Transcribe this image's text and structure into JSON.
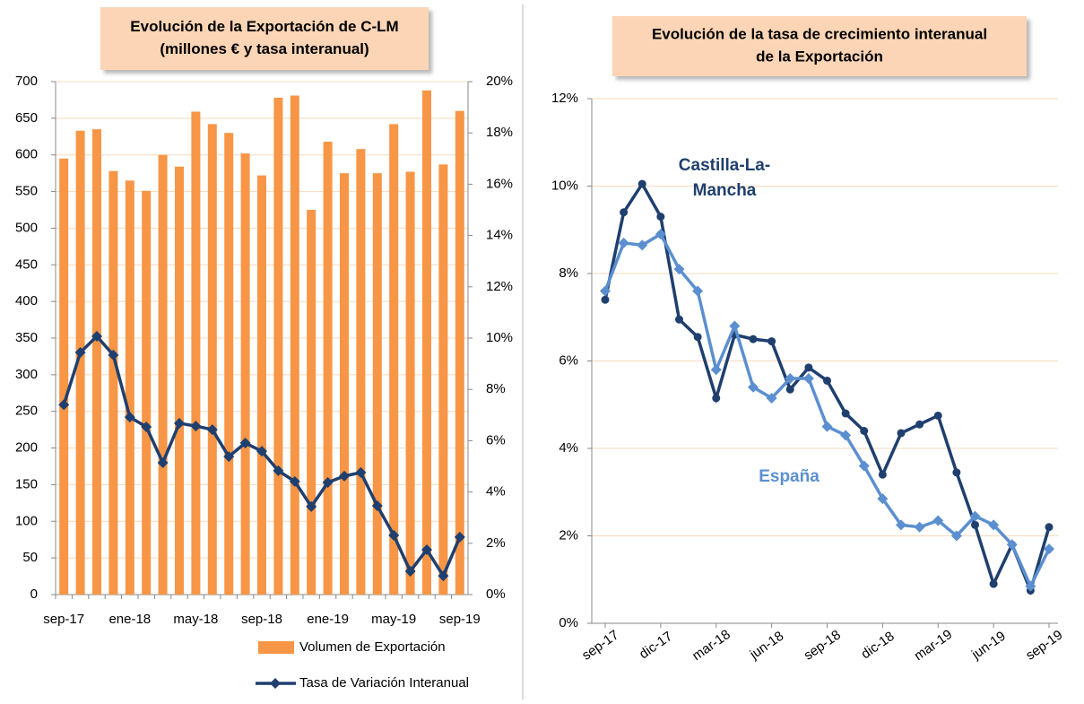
{
  "chart_data": [
    {
      "type": "combo",
      "title": [
        "Evolución de la Exportación de C-LM",
        "(millones € y tasa interanual)"
      ],
      "categories": [
        "sep-17",
        null,
        null,
        null,
        "ene-18",
        null,
        null,
        null,
        "may-18",
        null,
        null,
        null,
        "sep-18",
        null,
        null,
        null,
        "ene-19",
        null,
        null,
        null,
        "may-19",
        null,
        null,
        null,
        "sep-19"
      ],
      "series": [
        {
          "name": "Volumen de Exportación",
          "type": "bar",
          "color": "#f79646",
          "values": [
            595,
            633,
            635,
            578,
            565,
            551,
            600,
            584,
            659,
            642,
            630,
            602,
            572,
            678,
            681,
            525,
            618,
            575,
            608,
            575,
            642,
            577,
            688,
            587,
            660
          ]
        },
        {
          "name": "Tasa de Variación Interanual",
          "type": "line",
          "axis": "y2",
          "marker": "diamond",
          "color": "#1f3f6e",
          "values": [
            7.4,
            9.44,
            10.07,
            9.34,
            6.92,
            6.54,
            5.14,
            6.68,
            6.57,
            6.43,
            5.38,
            5.91,
            5.59,
            4.83,
            4.41,
            3.43,
            4.37,
            4.62,
            4.76,
            3.46,
            2.31,
            0.91,
            1.75,
            0.73,
            2.24
          ]
        }
      ],
      "ylim": [
        0,
        700
      ],
      "yticks": [
        0,
        50,
        100,
        150,
        200,
        250,
        300,
        350,
        400,
        450,
        500,
        550,
        600,
        650,
        700
      ],
      "y2lim": [
        0,
        20
      ],
      "y2ticks": [
        {
          "value": 0,
          "label": "0%"
        },
        {
          "value": 2,
          "label": "2%"
        },
        {
          "value": 4,
          "label": "4%"
        },
        {
          "value": 6,
          "label": "6%"
        },
        {
          "value": 8,
          "label": "8%"
        },
        {
          "value": 10,
          "label": "10%"
        },
        {
          "value": 12,
          "label": "12%"
        },
        {
          "value": 14,
          "label": "14%"
        },
        {
          "value": 16,
          "label": "16%"
        },
        {
          "value": 18,
          "label": "18%"
        },
        {
          "value": 20,
          "label": "20%"
        }
      ],
      "grid": true,
      "legend": "bottom"
    },
    {
      "type": "line",
      "title": [
        "Evolución de la tasa de crecimiento interanual",
        "de la Exportación"
      ],
      "categories": [
        "sep-17",
        null,
        null,
        "dic-17",
        null,
        null,
        "mar-18",
        null,
        null,
        "jun-18",
        null,
        null,
        "sep-18",
        null,
        null,
        "dic-18",
        null,
        null,
        "mar-19",
        null,
        null,
        "jun-19",
        null,
        null,
        "sep-19"
      ],
      "series": [
        {
          "name": [
            "Castilla-La-",
            "Mancha"
          ],
          "marker": "circle",
          "color": "#1f3f6e",
          "values": [
            7.4,
            9.4,
            10.05,
            9.3,
            6.95,
            6.55,
            5.15,
            6.6,
            6.5,
            6.45,
            5.35,
            5.85,
            5.55,
            4.8,
            4.4,
            3.4,
            4.35,
            4.55,
            4.75,
            3.45,
            2.25,
            0.9,
            1.8,
            0.75,
            2.2
          ]
        },
        {
          "name": [
            "España"
          ],
          "marker": "diamond",
          "color": "#5b8fd0",
          "values": [
            7.6,
            8.7,
            8.65,
            8.9,
            8.1,
            7.6,
            5.8,
            6.8,
            5.4,
            5.15,
            5.6,
            5.6,
            4.5,
            4.3,
            3.6,
            2.85,
            2.25,
            2.2,
            2.35,
            2.0,
            2.45,
            2.25,
            1.8,
            0.85,
            1.7
          ]
        }
      ],
      "ylim": [
        0,
        12
      ],
      "yticks": [
        {
          "value": 0,
          "label": "0%"
        },
        {
          "value": 2,
          "label": "2%"
        },
        {
          "value": 4,
          "label": "4%"
        },
        {
          "value": 6,
          "label": "6%"
        },
        {
          "value": 8,
          "label": "8%"
        },
        {
          "value": 10,
          "label": "10%"
        },
        {
          "value": 12,
          "label": "12%"
        }
      ],
      "grid": true
    }
  ]
}
